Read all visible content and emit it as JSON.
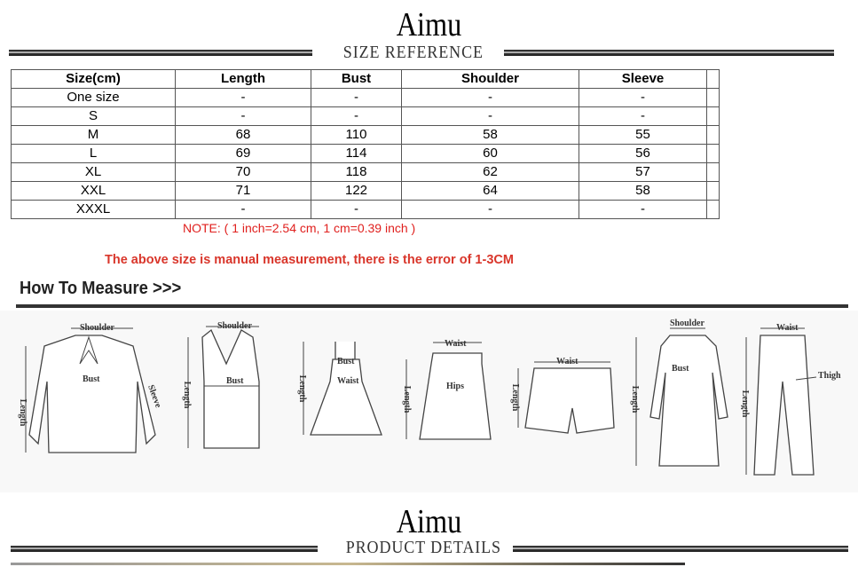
{
  "header": {
    "brand": "Aimu",
    "subtitle": "SIZE REFERENCE"
  },
  "size_table": {
    "columns": [
      "Size(cm)",
      "Length",
      "Bust",
      "Shoulder",
      "Sleeve",
      ""
    ],
    "rows": [
      [
        "One size",
        "-",
        "-",
        "-",
        "-",
        ""
      ],
      [
        "S",
        "-",
        "-",
        "-",
        "-",
        ""
      ],
      [
        "M",
        "68",
        "110",
        "58",
        "55",
        ""
      ],
      [
        "L",
        "69",
        "114",
        "60",
        "56",
        ""
      ],
      [
        "XL",
        "70",
        "118",
        "62",
        "57",
        ""
      ],
      [
        "XXL",
        "71",
        "122",
        "64",
        "58",
        ""
      ],
      [
        "XXXL",
        "-",
        "-",
        "-",
        "-",
        ""
      ]
    ]
  },
  "note": "NOTE: ( 1 inch=2.54 cm, 1 cm=0.39 inch )",
  "warning": "The above size is manual measurement, there is the error of 1-3CM",
  "how_to_measure": {
    "title": "How To Measure >>>",
    "figures": [
      {
        "garment": "blouse",
        "labels": {
          "top": "Shoulder",
          "mid": "Bust",
          "side": "Length",
          "right": "Sleeve"
        }
      },
      {
        "garment": "tank-top",
        "labels": {
          "top": "Shoulder",
          "mid": "Bust",
          "side": "Length"
        }
      },
      {
        "garment": "dress",
        "labels": {
          "top": "Bust",
          "mid": "Waist",
          "side": "Length"
        }
      },
      {
        "garment": "skirt",
        "labels": {
          "top": "Waist",
          "mid": "Hips",
          "side": "Length"
        }
      },
      {
        "garment": "shorts",
        "labels": {
          "top": "Waist",
          "side": "Length"
        }
      },
      {
        "garment": "coat",
        "labels": {
          "top": "Shoulder",
          "mid": "Bust",
          "side": "Length"
        }
      },
      {
        "garment": "pants",
        "labels": {
          "top": "Waist",
          "right": "Thigh",
          "side": "Length"
        }
      }
    ]
  },
  "footer": {
    "brand": "Aimu",
    "subtitle": "PRODUCT DETAILS"
  },
  "colors": {
    "note": "#e0201e",
    "warning": "#d9362b"
  }
}
